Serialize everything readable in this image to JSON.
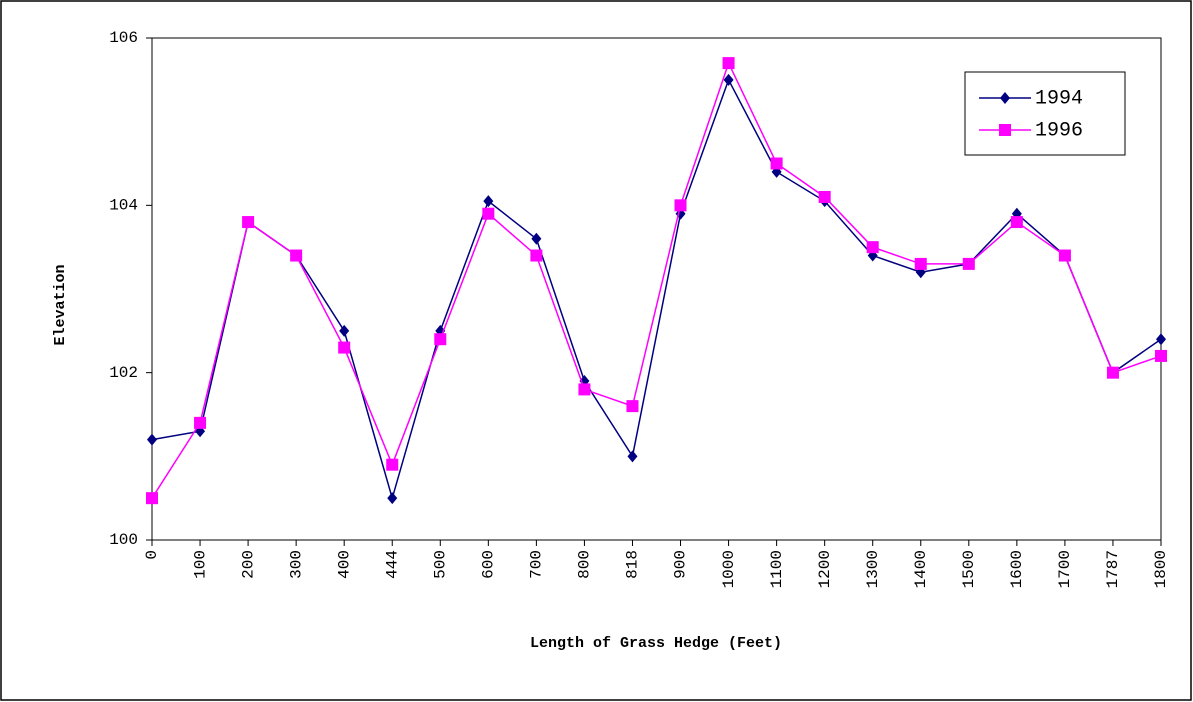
{
  "chart_data": {
    "type": "line",
    "x_label": "Length of Grass Hedge (Feet)",
    "y_label": "Elevation",
    "categories": [
      "0",
      "100",
      "200",
      "300",
      "400",
      "444",
      "500",
      "600",
      "700",
      "800",
      "818",
      "900",
      "1000",
      "1100",
      "1200",
      "1300",
      "1400",
      "1500",
      "1600",
      "1700",
      "1787",
      "1800"
    ],
    "series": [
      {
        "name": "1994",
        "color": "#000080",
        "marker": "diamond",
        "values": [
          101.2,
          101.3,
          103.8,
          103.4,
          102.5,
          100.5,
          102.5,
          104.05,
          103.6,
          101.9,
          101.0,
          103.9,
          105.5,
          104.4,
          104.05,
          103.4,
          103.2,
          103.3,
          103.9,
          103.4,
          102.0,
          102.4
        ]
      },
      {
        "name": "1996",
        "color": "#ff00ff",
        "marker": "square",
        "values": [
          100.5,
          101.4,
          103.8,
          103.4,
          102.3,
          100.9,
          102.4,
          103.9,
          103.4,
          101.8,
          101.6,
          104.0,
          105.7,
          104.5,
          104.1,
          103.5,
          103.3,
          103.3,
          103.8,
          103.4,
          102.0,
          102.2
        ]
      }
    ],
    "ylim": [
      100,
      106
    ],
    "yticks": [
      100,
      102,
      104,
      106
    ],
    "grid": false,
    "legend": "upper right"
  }
}
